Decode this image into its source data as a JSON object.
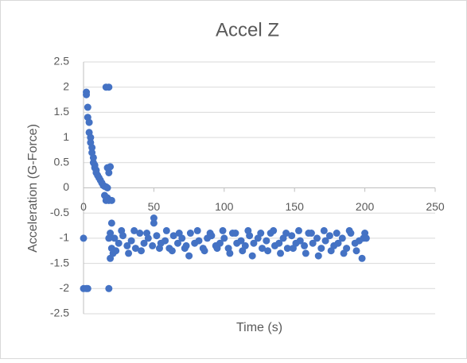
{
  "chart_data": {
    "type": "scatter",
    "title": "Accel Z",
    "x_label": "Time (s)",
    "y_label": "Acceleration (G-Force)",
    "color": "#4472c4",
    "grid": true,
    "xlim": [
      0,
      250
    ],
    "xticks": [
      0,
      50,
      100,
      150,
      200,
      250
    ],
    "ylim": [
      -2.5,
      2.5
    ],
    "yticks": [
      -2.5,
      -2,
      -1.5,
      -1,
      -0.5,
      0,
      0.5,
      1,
      1.5,
      2,
      2.5
    ],
    "x": [
      0,
      0,
      2,
      3,
      2,
      2,
      3,
      3,
      4,
      4,
      5,
      5,
      6,
      6,
      7,
      7,
      8,
      8,
      9,
      9,
      10,
      11,
      12,
      13,
      14,
      15,
      16,
      17,
      15,
      16,
      17,
      18,
      16,
      18,
      17,
      19,
      18,
      20,
      18,
      19,
      20,
      19,
      18,
      20,
      21,
      22,
      25,
      28,
      31,
      34,
      37,
      40,
      43,
      46,
      49,
      52,
      55,
      58,
      61,
      64,
      67,
      70,
      73,
      76,
      79,
      82,
      85,
      88,
      91,
      94,
      97,
      100,
      103,
      106,
      109,
      112,
      115,
      118,
      121,
      124,
      127,
      130,
      133,
      136,
      139,
      142,
      145,
      148,
      151,
      154,
      157,
      160,
      163,
      166,
      169,
      172,
      175,
      178,
      181,
      184,
      187,
      190,
      193,
      196,
      199,
      201,
      23,
      27,
      32,
      36,
      41,
      45,
      50,
      50,
      54,
      59,
      63,
      68,
      72,
      75,
      81,
      86,
      90,
      95,
      99,
      104,
      108,
      113,
      117,
      120,
      126,
      131,
      135,
      140,
      144,
      149,
      153,
      158,
      162,
      167,
      171,
      176,
      180,
      185,
      189,
      194,
      198,
      200
    ],
    "y": [
      -1.0,
      -2.0,
      -2.0,
      -2.0,
      1.9,
      1.85,
      1.6,
      1.4,
      1.3,
      1.1,
      1.0,
      0.9,
      0.8,
      0.7,
      0.6,
      0.5,
      0.45,
      0.4,
      0.35,
      0.3,
      0.25,
      0.2,
      0.15,
      0.1,
      0.05,
      0.03,
      0.02,
      0,
      -0.15,
      -0.25,
      -0.2,
      -0.25,
      2.0,
      2.0,
      0.4,
      0.42,
      0.3,
      -0.25,
      -2.0,
      -1.4,
      -0.7,
      -0.9,
      -1.0,
      -1.2,
      -1.3,
      -1.0,
      -1.1,
      -0.95,
      -1.15,
      -1.05,
      -1.2,
      -0.9,
      -1.1,
      -1.0,
      -1.15,
      -0.95,
      -1.1,
      -1.05,
      -1.2,
      -0.95,
      -1.1,
      -1.0,
      -1.15,
      -0.9,
      -1.1,
      -1.05,
      -1.2,
      -1.0,
      -0.95,
      -1.15,
      -1.1,
      -1.0,
      -1.2,
      -0.9,
      -1.1,
      -1.05,
      -1.15,
      -0.95,
      -1.1,
      -1.0,
      -1.2,
      -1.05,
      -0.9,
      -1.15,
      -1.1,
      -1.0,
      -1.2,
      -0.95,
      -1.1,
      -1.05,
      -1.15,
      -0.9,
      -1.1,
      -1.0,
      -1.2,
      -1.05,
      -0.95,
      -1.15,
      -1.1,
      -1.0,
      -1.2,
      -0.9,
      -1.1,
      -1.05,
      -1.0,
      -1.0,
      -1.25,
      -0.85,
      -1.3,
      -0.85,
      -1.25,
      -0.9,
      -0.6,
      -0.7,
      -1.2,
      -0.85,
      -1.25,
      -0.9,
      -1.2,
      -1.35,
      -0.85,
      -1.25,
      -0.9,
      -1.2,
      -0.85,
      -1.3,
      -0.9,
      -1.25,
      -0.85,
      -1.35,
      -0.9,
      -1.25,
      -0.85,
      -1.3,
      -0.9,
      -1.2,
      -0.85,
      -1.3,
      -0.9,
      -1.35,
      -0.85,
      -1.25,
      -0.9,
      -1.3,
      -0.85,
      -1.25,
      -1.4,
      -0.9
    ]
  }
}
